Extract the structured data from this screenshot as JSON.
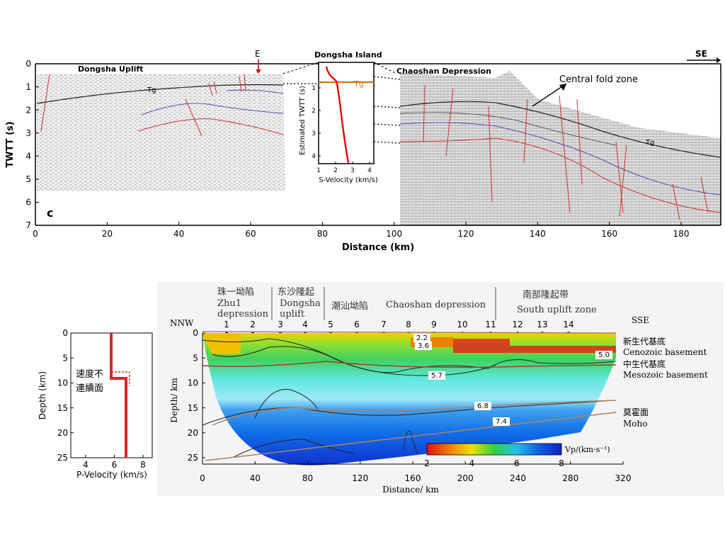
{
  "top_panel": {
    "panel_letter": "c",
    "direction": "SE",
    "marker": "E",
    "y_axis_label": "TWTT (s)",
    "x_axis_label": "Distance (km)",
    "y_ticks": [
      "0",
      "1",
      "2",
      "3",
      "4",
      "5",
      "6",
      "7"
    ],
    "x_ticks": [
      "0",
      "20",
      "40",
      "60",
      "80",
      "100",
      "120",
      "140",
      "160",
      "180"
    ],
    "regions": {
      "dongsha_uplift": "Dongsha Uplift",
      "dongsha_island": "Dongsha Island",
      "chaoshan_depression": "Chaoshan Depression",
      "central_fold_zone": "Central fold zone"
    },
    "tg_label": "Tg",
    "inset": {
      "x_axis_label": "S-Velocity (km/s)",
      "y_axis_label": "Estimated TWTT (s)",
      "x_ticks": [
        "1",
        "2",
        "3",
        "4"
      ],
      "y_ticks": [
        "1",
        "2",
        "3",
        "4"
      ],
      "tg_label": "Tg"
    }
  },
  "left_panel": {
    "x_axis_label": "P-Velocity (km/s)",
    "y_axis_label": "Depth (km)",
    "x_ticks": [
      "4",
      "6",
      "8"
    ],
    "y_ticks": [
      "0",
      "5",
      "10",
      "15",
      "20",
      "25"
    ],
    "annotation_line1": "速度不",
    "annotation_line2": "連續面"
  },
  "bottom_panel": {
    "header_zhu1_cn": "珠一坳陷",
    "header_zhu1_en1": "Zhu1",
    "header_zhu1_en2": "depression",
    "header_dongsha_cn": "东沙隆起",
    "header_dongsha_en1": "Dongsha",
    "header_dongsha_en2": "uplift",
    "header_chaoshan_cn": "潮汕坳陷",
    "header_chaoshan_en": "Chaoshan depression",
    "header_south_cn": "南部隆起带",
    "header_south_en": "South uplift zone",
    "nnw": "NNW",
    "sse": "SSE",
    "station_numbers": [
      "1",
      "2",
      "3",
      "4",
      "5",
      "6",
      "7",
      "8",
      "9",
      "10",
      "11",
      "12",
      "13",
      "14"
    ],
    "y_axis_label": "Depth/ km",
    "x_axis_label": "Distance/ km",
    "y_ticks": [
      "0",
      "5",
      "10",
      "15",
      "20",
      "25"
    ],
    "x_ticks": [
      "0",
      "40",
      "80",
      "120",
      "160",
      "200",
      "240",
      "280",
      "320"
    ],
    "right_labels": {
      "cenozoic_cn": "新生代基底",
      "cenozoic_en": "Cenozoic basement",
      "mesozoic_cn": "中生代基底",
      "mesozoic_en": "Mesozoic basement",
      "moho_cn": "莫霍面",
      "moho_en": "Moho"
    },
    "contour_labels": [
      "2.2",
      "3.6",
      "5.0",
      "5.7",
      "6.8",
      "7.4"
    ],
    "colorbar": {
      "ticks": [
        "2",
        "4",
        "6",
        "8"
      ],
      "label": "Vp/(km·s⁻¹)",
      "colors": [
        "#e01010",
        "#f08000",
        "#f0e000",
        "#30d040",
        "#20c0f0",
        "#1060e0",
        "#1020c0"
      ]
    }
  }
}
